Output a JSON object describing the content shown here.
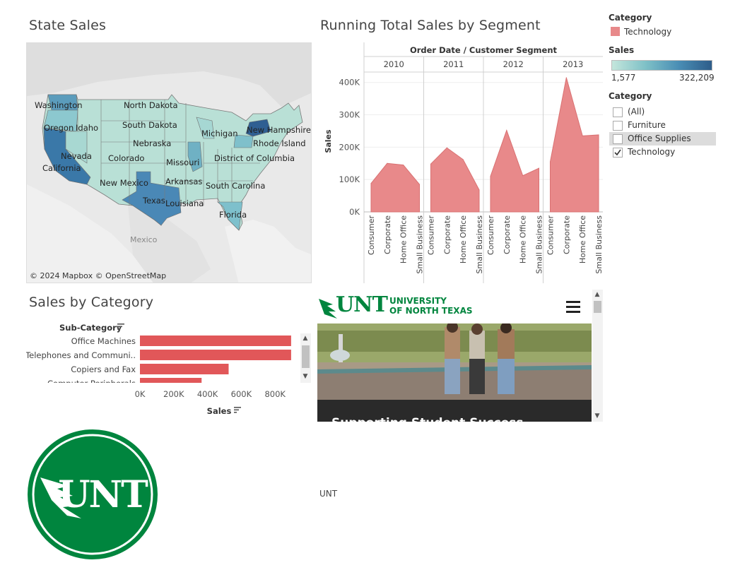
{
  "state_sales": {
    "title": "State Sales",
    "attribution": "© 2024 Mapbox © OpenStreetMap",
    "mexico_label": "Mexico",
    "state_labels": [
      "Washington",
      "North Dakota",
      "Oregon",
      "Idaho",
      "South Dakota",
      "Michigan",
      "New Hampshire",
      "Nebraska",
      "Rhode Island",
      "Nevada",
      "Colorado",
      "Missouri",
      "District of Columbia",
      "California",
      "New Mexico",
      "Arkansas",
      "South Carolina",
      "Texas",
      "Louisiana",
      "Florida"
    ]
  },
  "running_total": {
    "title": "Running Total Sales by Segment",
    "header": "Order Date / Customer Segment",
    "ylabel": "Sales"
  },
  "chart_data": [
    {
      "type": "area",
      "title": "Running Total Sales by Segment",
      "xlabel": "Order Date / Customer Segment",
      "ylabel": "Sales",
      "ylim": [
        0,
        430000
      ],
      "yticks": [
        "0K",
        "100K",
        "200K",
        "300K",
        "400K"
      ],
      "years": [
        "2010",
        "2011",
        "2012",
        "2013"
      ],
      "categories": [
        "Consumer",
        "Corporate",
        "Home Office",
        "Small Business"
      ],
      "series": [
        {
          "name": "Technology",
          "year": "2010",
          "values": [
            88000,
            150000,
            145000,
            85000
          ]
        },
        {
          "name": "Technology",
          "year": "2011",
          "values": [
            148000,
            198000,
            162000,
            68000
          ]
        },
        {
          "name": "Technology",
          "year": "2012",
          "values": [
            110000,
            252000,
            112000,
            135000
          ]
        },
        {
          "name": "Technology",
          "year": "2013",
          "values": [
            155000,
            415000,
            235000,
            238000
          ]
        }
      ],
      "color": "#e8898a"
    },
    {
      "type": "bar",
      "title": "Sales by Category",
      "xlabel": "Sales",
      "ylabel": "Sub-Category",
      "xlim": [
        0,
        1000000
      ],
      "xticks": [
        "0K",
        "200K",
        "400K",
        "600K",
        "800K"
      ],
      "categories": [
        "Office Machines",
        "Telephones and Communi..",
        "Copiers and Fax",
        "Computer Peripherals"
      ],
      "values": [
        895000,
        895000,
        525000,
        365000
      ],
      "color": "#e15759"
    }
  ],
  "legend": {
    "category_title": "Category",
    "category_item": "Technology",
    "category_color": "#e8898a",
    "sales_title": "Sales",
    "sales_min": "1,577",
    "sales_max": "322,209",
    "ramp_start": "#c4e6dc",
    "ramp_end": "#2e5d8a"
  },
  "filter": {
    "title": "Category",
    "items": [
      {
        "label": "(All)",
        "checked": false
      },
      {
        "label": "Furniture",
        "checked": false
      },
      {
        "label": "Office Supplies",
        "checked": false
      },
      {
        "label": "Technology",
        "checked": true
      }
    ]
  },
  "sales_by_category": {
    "title": "Sales by Category",
    "subcat_header": "Sub-Category",
    "sales_header": "Sales"
  },
  "unt_web": {
    "logo_text": "UNT",
    "university_line1": "UNIVERSITY",
    "university_line2": "OF NORTH TEXAS",
    "headline": "Supporting Student Success"
  },
  "unt_caption": "UNT",
  "colors": {
    "unt_green": "#00853e",
    "bar_red": "#e15759",
    "area_pink": "#e8898a"
  }
}
